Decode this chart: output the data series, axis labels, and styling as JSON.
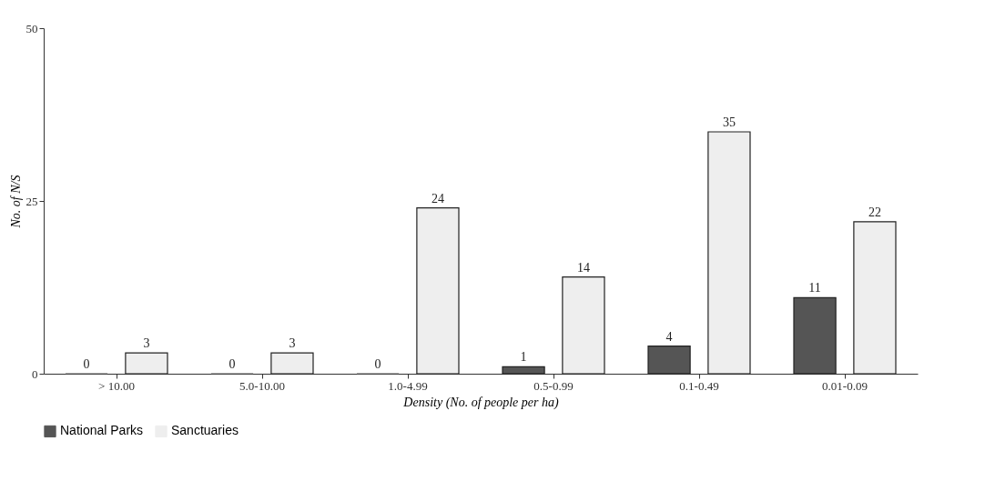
{
  "chart_data": {
    "type": "bar",
    "xlabel": "Density (No. of people per ha)",
    "ylabel": "No. of N/S",
    "categories": [
      "> 10.00",
      "5.0-10.00",
      "1.0-4.99",
      "0.5-0.99",
      "0.1-0.49",
      "0.01-0.09"
    ],
    "series": [
      {
        "name": "National Parks",
        "color": "#555555",
        "values": [
          0,
          0,
          0,
          1,
          4,
          11
        ]
      },
      {
        "name": "Sanctuaries",
        "color": "#eeeeee",
        "values": [
          3,
          3,
          24,
          14,
          35,
          22
        ]
      }
    ],
    "ylim": [
      0,
      50
    ],
    "yticks": [
      0,
      25,
      50
    ],
    "grid": false,
    "legend": "bottom",
    "data_labels": true
  }
}
